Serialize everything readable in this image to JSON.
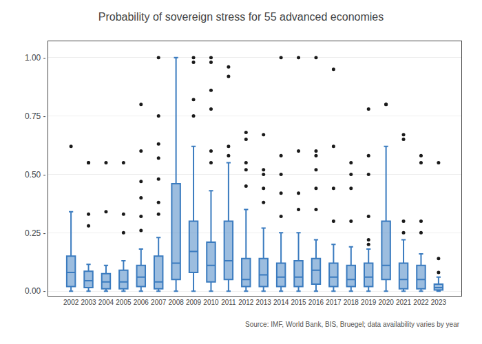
{
  "chart_data": {
    "type": "box",
    "title": "Probability of sovereign stress for 55 advanced economies",
    "annotations": [
      "Source: IMF, World Bank, BIS, Bruegel; data availability varies by year"
    ],
    "categories": [
      "2002",
      "2003",
      "2004",
      "2005",
      "2006",
      "2007",
      "2008",
      "2009",
      "2010",
      "2011",
      "2012",
      "2013",
      "2014",
      "2015",
      "2016",
      "2017",
      "2018",
      "2019",
      "2020",
      "2021",
      "2022",
      "2023"
    ],
    "series": [
      {
        "type": "box",
        "color": "#3a7bbf",
        "q1": [
          0.02,
          0.015,
          0.01,
          0.01,
          0.02,
          0.01,
          0.05,
          0.08,
          0.04,
          0.05,
          0.02,
          0.02,
          0.02,
          0.02,
          0.03,
          0.02,
          0.02,
          0.02,
          0.05,
          0.01,
          0.01,
          0.005
        ],
        "median": [
          0.08,
          0.045,
          0.04,
          0.04,
          0.06,
          0.04,
          0.12,
          0.17,
          0.11,
          0.13,
          0.05,
          0.07,
          0.06,
          0.06,
          0.09,
          0.06,
          0.05,
          0.06,
          0.11,
          0.05,
          0.05,
          0.015
        ],
        "q3": [
          0.15,
          0.085,
          0.075,
          0.09,
          0.11,
          0.15,
          0.46,
          0.3,
          0.21,
          0.3,
          0.14,
          0.14,
          0.12,
          0.13,
          0.14,
          0.12,
          0.11,
          0.12,
          0.3,
          0.12,
          0.11,
          0.03
        ],
        "whislo": [
          0.0,
          0.0,
          0.0,
          0.0,
          0.0,
          0.0,
          0.0,
          0.0,
          0.0,
          0.0,
          0.0,
          0.0,
          0.0,
          0.0,
          0.0,
          0.0,
          0.0,
          0.0,
          0.0,
          0.0,
          0.0,
          0.0
        ],
        "whishi": [
          0.34,
          0.115,
          0.11,
          0.13,
          0.18,
          0.23,
          1.0,
          0.62,
          0.43,
          0.55,
          0.35,
          0.27,
          0.25,
          0.25,
          0.22,
          0.2,
          0.19,
          0.18,
          0.62,
          0.22,
          0.16,
          0.06
        ]
      },
      {
        "type": "scatter",
        "marker": "circle",
        "color": "#1a1a1a",
        "values": [
          [
            0.62
          ],
          [
            0.28,
            0.33,
            0.55,
            0.55
          ],
          [
            0.34,
            0.55
          ],
          [
            0.25,
            0.33,
            0.55
          ],
          [
            0.26,
            0.32,
            0.4,
            0.47,
            0.6,
            0.8
          ],
          [
            0.33,
            0.38,
            0.48,
            0.57,
            0.63,
            0.75,
            1.0
          ],
          [],
          [
            0.75,
            0.82,
            0.98,
            1.0
          ],
          [
            0.55,
            0.6,
            0.78,
            0.86,
            0.98,
            1.0
          ],
          [
            0.58,
            0.62,
            0.92,
            0.96
          ],
          [
            0.45,
            0.52,
            0.55,
            0.65,
            0.68
          ],
          [
            0.38,
            0.44,
            0.5,
            0.52,
            0.67
          ],
          [
            0.32,
            0.42,
            0.5,
            0.58,
            1.0
          ],
          [
            0.35,
            0.42,
            0.6,
            1.0
          ],
          [
            0.35,
            0.44,
            0.52,
            0.58,
            0.6,
            1.0
          ],
          [
            0.3,
            0.44,
            0.62,
            0.95
          ],
          [
            0.3,
            0.44,
            0.5,
            0.55
          ],
          [
            0.2,
            0.22,
            0.32,
            0.5,
            0.58,
            0.78
          ],
          [
            0.8,
            0.8
          ],
          [
            0.25,
            0.3,
            0.65,
            0.67
          ],
          [
            0.25,
            0.3,
            0.55,
            0.58
          ],
          [
            0.08,
            0.14,
            0.55
          ]
        ]
      }
    ],
    "ylim": [
      -0.02,
      1.07
    ],
    "yticks": [
      {
        "value": 0.0,
        "label": "0.00 -"
      },
      {
        "value": 0.25,
        "label": "0.25 -"
      },
      {
        "value": 0.5,
        "label": "0.50 -"
      },
      {
        "value": 0.75,
        "label": "0.75 -"
      },
      {
        "value": 1.0,
        "label": "1.00 -"
      }
    ],
    "grid": true
  }
}
